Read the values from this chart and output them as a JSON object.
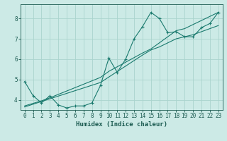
{
  "xlabel": "Humidex (Indice chaleur)",
  "ylabel": "",
  "background_color": "#cceae6",
  "grid_color": "#aad4ce",
  "line_color": "#1a7a6e",
  "xlim": [
    -0.5,
    23.5
  ],
  "ylim": [
    3.5,
    8.7
  ],
  "xticks": [
    0,
    1,
    2,
    3,
    4,
    5,
    6,
    7,
    8,
    9,
    10,
    11,
    12,
    13,
    14,
    15,
    16,
    17,
    18,
    19,
    20,
    21,
    22,
    23
  ],
  "yticks": [
    4,
    5,
    6,
    7,
    8
  ],
  "line1_x": [
    0,
    1,
    2,
    3,
    4,
    5,
    6,
    7,
    8,
    9,
    10,
    11,
    12,
    13,
    14,
    15,
    16,
    17,
    18,
    19,
    20,
    21,
    22,
    23
  ],
  "line1_y": [
    4.9,
    4.2,
    3.85,
    4.2,
    3.75,
    3.6,
    3.7,
    3.7,
    3.85,
    4.7,
    6.05,
    5.35,
    6.0,
    7.0,
    7.6,
    8.3,
    8.0,
    7.3,
    7.35,
    7.1,
    7.1,
    7.55,
    7.75,
    8.3
  ],
  "line2_x": [
    0,
    3,
    9,
    14,
    15,
    16,
    17,
    18,
    19,
    20,
    21,
    22,
    23
  ],
  "line2_y": [
    3.65,
    4.05,
    4.85,
    6.2,
    6.45,
    6.6,
    6.8,
    7.0,
    7.1,
    7.2,
    7.35,
    7.5,
    7.65
  ],
  "line3_x": [
    0,
    2,
    3,
    9,
    10,
    14,
    15,
    18,
    19,
    23
  ],
  "line3_y": [
    3.7,
    3.95,
    4.1,
    5.1,
    5.4,
    6.3,
    6.5,
    7.4,
    7.5,
    8.3
  ],
  "font_color": "#1a5a50",
  "tick_fontsize": 5.5,
  "label_fontsize": 6.5
}
